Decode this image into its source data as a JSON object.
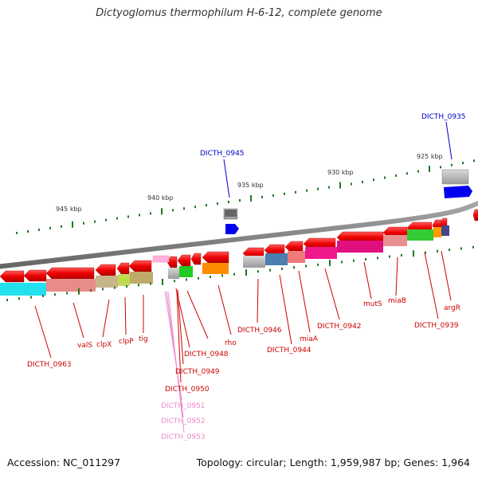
{
  "title": "Dictyoglomus thermophilum H-6-12, complete genome",
  "footer": {
    "accession": "Accession: NC_011297",
    "stats": "Topology: circular; Length: 1,959,987 bp; Genes: 1,964"
  },
  "scale_labels": [
    "945 kbp",
    "940 kbp",
    "935 kbp",
    "930 kbp",
    "925 kbp"
  ],
  "blue_labels": [
    "DICTH_0945",
    "DICTH_0935"
  ],
  "red_labels": [
    "DICTH_0963",
    "valS",
    "clpX",
    "clpP",
    "tig",
    "DICTH_0948",
    "DICTH_0949",
    "DICTH_0950",
    "rho",
    "DICTH_0946",
    "DICTH_0944",
    "miaA",
    "DICTH_0942",
    "mutS",
    "miaB",
    "DICTH_0939",
    "argR"
  ],
  "pink_labels": [
    "DICTH_0951",
    "DICTH_0952",
    "DICTH_0953"
  ],
  "colors": {
    "gene_forward": "#ee0000",
    "gene_label": "#cc0000",
    "locus_blue": "#0000cc",
    "rna_pink": "#ee88cc",
    "backbone": "#777777",
    "tick": "#227722"
  }
}
